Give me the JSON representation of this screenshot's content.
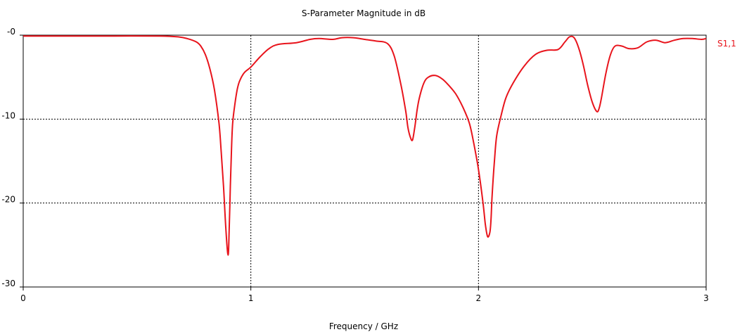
{
  "chart_data": {
    "type": "line",
    "title": "S-Parameter Magnitude in dB",
    "xlabel": "Frequency / GHz",
    "ylabel": "",
    "xlim": [
      0,
      3
    ],
    "ylim": [
      -30,
      0
    ],
    "x_ticks": [
      {
        "value": 0,
        "label": "0"
      },
      {
        "value": 1,
        "label": "1"
      },
      {
        "value": 2,
        "label": "2"
      },
      {
        "value": 3,
        "label": "3"
      }
    ],
    "y_ticks": [
      {
        "value": 0,
        "label": "-0"
      },
      {
        "value": -10,
        "label": "-10"
      },
      {
        "value": -20,
        "label": "-20"
      },
      {
        "value": -30,
        "label": "-30"
      }
    ],
    "grid": "dotted at interior ticks",
    "legend": "right",
    "series": [
      {
        "name": "S1,1",
        "color": "#e8141c",
        "x": [
          0,
          0.2,
          0.4,
          0.6,
          0.68,
          0.72,
          0.76,
          0.78,
          0.8,
          0.82,
          0.84,
          0.86,
          0.87,
          0.88,
          0.89,
          0.9,
          0.905,
          0.91,
          0.915,
          0.92,
          0.93,
          0.94,
          0.95,
          0.97,
          1.0,
          1.04,
          1.08,
          1.12,
          1.2,
          1.26,
          1.3,
          1.36,
          1.4,
          1.45,
          1.5,
          1.55,
          1.6,
          1.63,
          1.66,
          1.68,
          1.69,
          1.7,
          1.71,
          1.72,
          1.73,
          1.74,
          1.76,
          1.78,
          1.81,
          1.84,
          1.87,
          1.9,
          1.93,
          1.96,
          1.98,
          2.0,
          2.02,
          2.03,
          2.04,
          2.05,
          2.055,
          2.06,
          2.07,
          2.08,
          2.1,
          2.12,
          2.15,
          2.2,
          2.25,
          2.3,
          2.35,
          2.38,
          2.4,
          2.42,
          2.44,
          2.46,
          2.48,
          2.5,
          2.52,
          2.53,
          2.54,
          2.56,
          2.58,
          2.6,
          2.63,
          2.66,
          2.7,
          2.74,
          2.78,
          2.82,
          2.86,
          2.9,
          2.94,
          2.98,
          3.0
        ],
        "values": [
          -0.1,
          -0.1,
          -0.1,
          -0.1,
          -0.2,
          -0.4,
          -0.8,
          -1.3,
          -2.3,
          -4,
          -6.5,
          -10.5,
          -14,
          -18,
          -23,
          -26.2,
          -23,
          -18,
          -13.5,
          -10.5,
          -8.2,
          -6.5,
          -5.5,
          -4.5,
          -3.8,
          -2.6,
          -1.6,
          -1.1,
          -0.9,
          -0.5,
          -0.4,
          -0.5,
          -0.3,
          -0.3,
          -0.5,
          -0.7,
          -1,
          -2.5,
          -6,
          -9,
          -11,
          -12.1,
          -12.5,
          -11,
          -9,
          -7.5,
          -5.7,
          -5,
          -4.8,
          -5.2,
          -6,
          -7,
          -8.5,
          -10.5,
          -13,
          -16,
          -20,
          -22.5,
          -24,
          -23.5,
          -22,
          -19,
          -15,
          -12,
          -9.5,
          -7.5,
          -5.8,
          -3.7,
          -2.3,
          -1.8,
          -1.7,
          -0.8,
          -0.2,
          -0.3,
          -1.5,
          -3.5,
          -6,
          -8,
          -9.1,
          -8.7,
          -7.5,
          -4.5,
          -2.3,
          -1.3,
          -1.3,
          -1.6,
          -1.5,
          -0.8,
          -0.6,
          -0.9,
          -0.6,
          -0.4,
          -0.4,
          -0.5,
          -0.4
        ]
      }
    ]
  }
}
